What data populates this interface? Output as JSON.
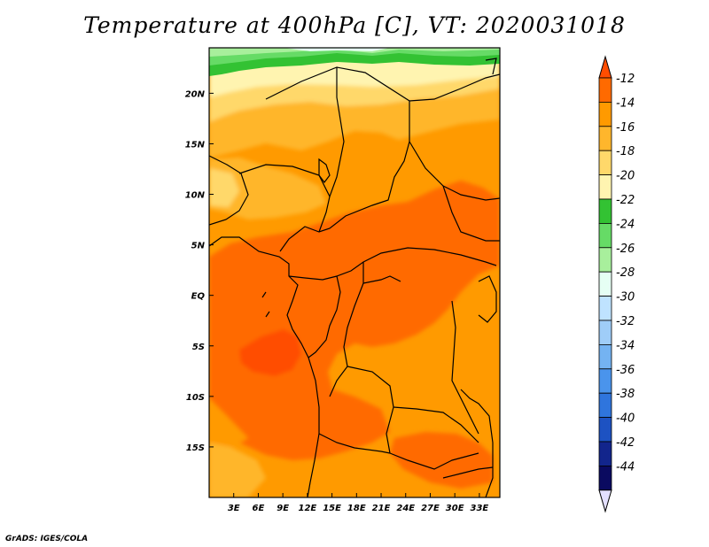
{
  "title": "Temperature at 400hPa [C], VT: 2020031018",
  "credit": "GrADS: IGES/COLA",
  "map": {
    "lat_labels": [
      "20N",
      "15N",
      "10N",
      "5N",
      "EQ",
      "5S",
      "10S",
      "15S"
    ],
    "lon_labels": [
      "3E",
      "6E",
      "9E",
      "12E",
      "15E",
      "18E",
      "21E",
      "24E",
      "27E",
      "30E",
      "33E"
    ],
    "lat_range": [
      -20,
      24.5
    ],
    "lon_range": [
      0,
      35.5
    ]
  },
  "colorbar": {
    "labels": [
      "-12",
      "-14",
      "-16",
      "-18",
      "-20",
      "-22",
      "-24",
      "-26",
      "-28",
      "-30",
      "-32",
      "-34",
      "-36",
      "-38",
      "-40",
      "-42",
      "-44"
    ],
    "colors": [
      "#ff4d00",
      "#ff6a00",
      "#ff9a00",
      "#ffb62c",
      "#ffd86a",
      "#fff4b0",
      "#33c233",
      "#66db66",
      "#a8ef9c",
      "#e6fff4",
      "#bfe3ff",
      "#9fcdf8",
      "#74b3f2",
      "#4a94ec",
      "#2f75dd",
      "#1d52c2",
      "#12258c",
      "#0a0a60",
      "#e4e0ff"
    ]
  }
}
